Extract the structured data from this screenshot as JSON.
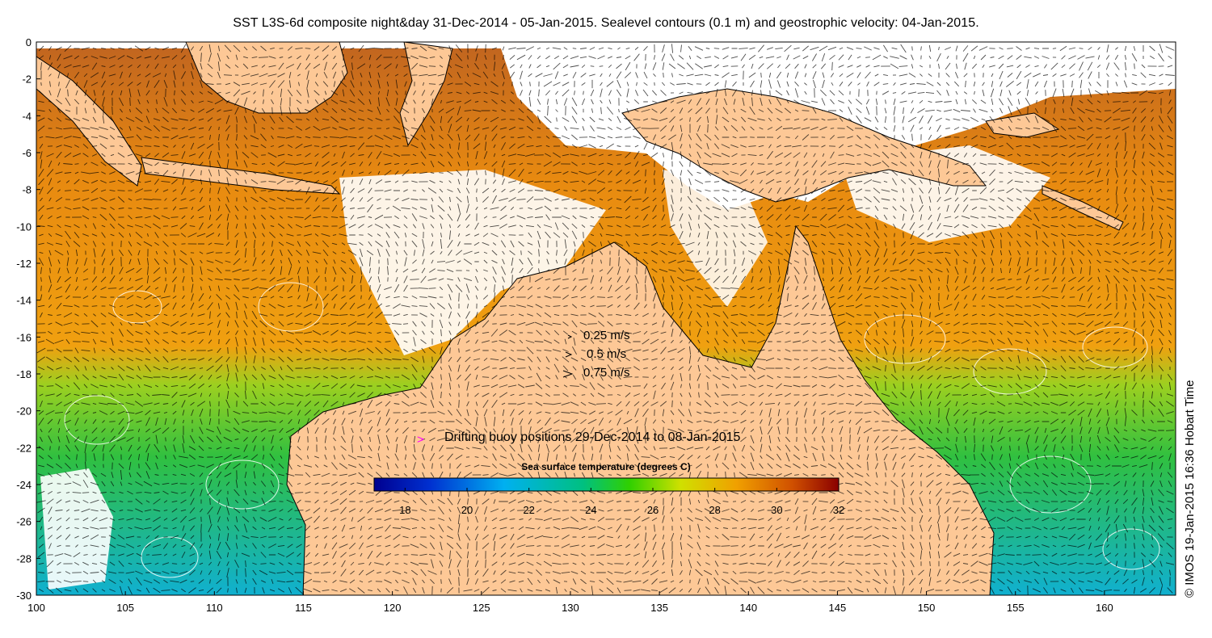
{
  "title": "SST L3S-6d composite night&day 31-Dec-2014 - 05-Jan-2015. Sealevel contours (0.1 m) and geostrophic velocity: 04-Jan-2015.",
  "credit": "© IMOS 19-Jan-2015 16:36 Hobart Time",
  "map_extent": {
    "lon": [
      100,
      164
    ],
    "lat": [
      -30,
      0
    ]
  },
  "x_ticks": [
    "100",
    "105",
    "110",
    "115",
    "120",
    "125",
    "130",
    "135",
    "140",
    "145",
    "150",
    "155",
    "160"
  ],
  "y_ticks": [
    "0",
    "-2",
    "-4",
    "-6",
    "-8",
    "-10",
    "-12",
    "-14",
    "-16",
    "-18",
    "-20",
    "-22",
    "-24",
    "-26",
    "-28",
    "-30"
  ],
  "velocity_legend": {
    "items": [
      {
        "label": "0.25 m/s",
        "speed": 0.25
      },
      {
        "label": "0.5 m/s",
        "speed": 0.5
      },
      {
        "label": "0.75 m/s",
        "speed": 0.75
      }
    ]
  },
  "buoy_legend": {
    "marker": ">",
    "label": "Drifting buoy positions 29-Dec-2014 to 08-Jan-2015",
    "color": "#ff00ff"
  },
  "colorbar": {
    "title": "Sea surface temperature (degrees C)",
    "min": 17,
    "max": 32,
    "ticks": [
      "18",
      "20",
      "22",
      "24",
      "26",
      "28",
      "30",
      "32"
    ]
  },
  "colors": {
    "land": "#fdc896",
    "no_data": "#ffffff",
    "contour": "#ffffff",
    "arrow": "#000000",
    "coast": "#000000"
  }
}
